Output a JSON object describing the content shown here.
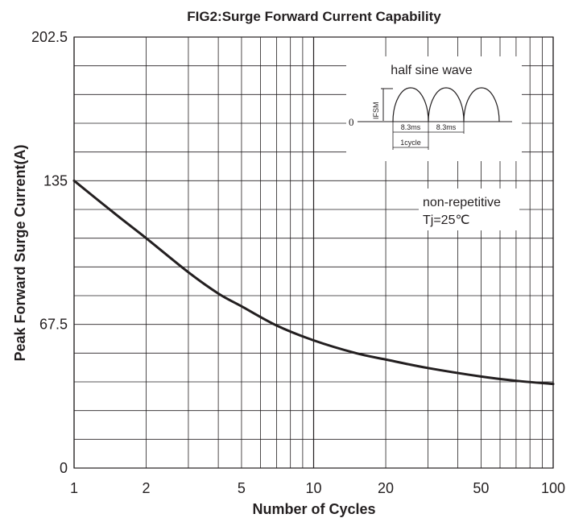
{
  "chart_data": {
    "type": "line",
    "title": "FIG2:Surge Forward Current Capability",
    "xlabel": "Number of Cycles",
    "ylabel": "Peak Forward Surge Current(A)",
    "x_scale": "log",
    "xlim": [
      1,
      100
    ],
    "ylim": [
      0,
      202.5
    ],
    "x_ticks": [
      1,
      2,
      5,
      10,
      20,
      50,
      100
    ],
    "x_tick_labels": [
      "1",
      "2",
      "5",
      "10",
      "20",
      "50",
      "100"
    ],
    "y_ticks": [
      0,
      67.5,
      135,
      202.5
    ],
    "y_tick_labels": [
      "0",
      "67.5",
      "135",
      "202.5"
    ],
    "grid": true,
    "series": [
      {
        "x": [
          1,
          1.5,
          2,
          3,
          4,
          5,
          7,
          10,
          15,
          20,
          30,
          50,
          70,
          100
        ],
        "values": [
          135,
          119,
          108,
          92,
          82,
          76,
          67,
          60,
          54,
          51,
          47,
          43,
          41,
          39.5
        ]
      }
    ],
    "annotations": {
      "waveform_title": "half sine wave",
      "ifsm_label": "IFSM",
      "zero_label": "0",
      "period_a": "8.3ms",
      "period_b": "8.3ms",
      "cycle_label": "1cycle",
      "note_line1": "non-repetitive",
      "note_line2": "Tj=25℃"
    }
  }
}
